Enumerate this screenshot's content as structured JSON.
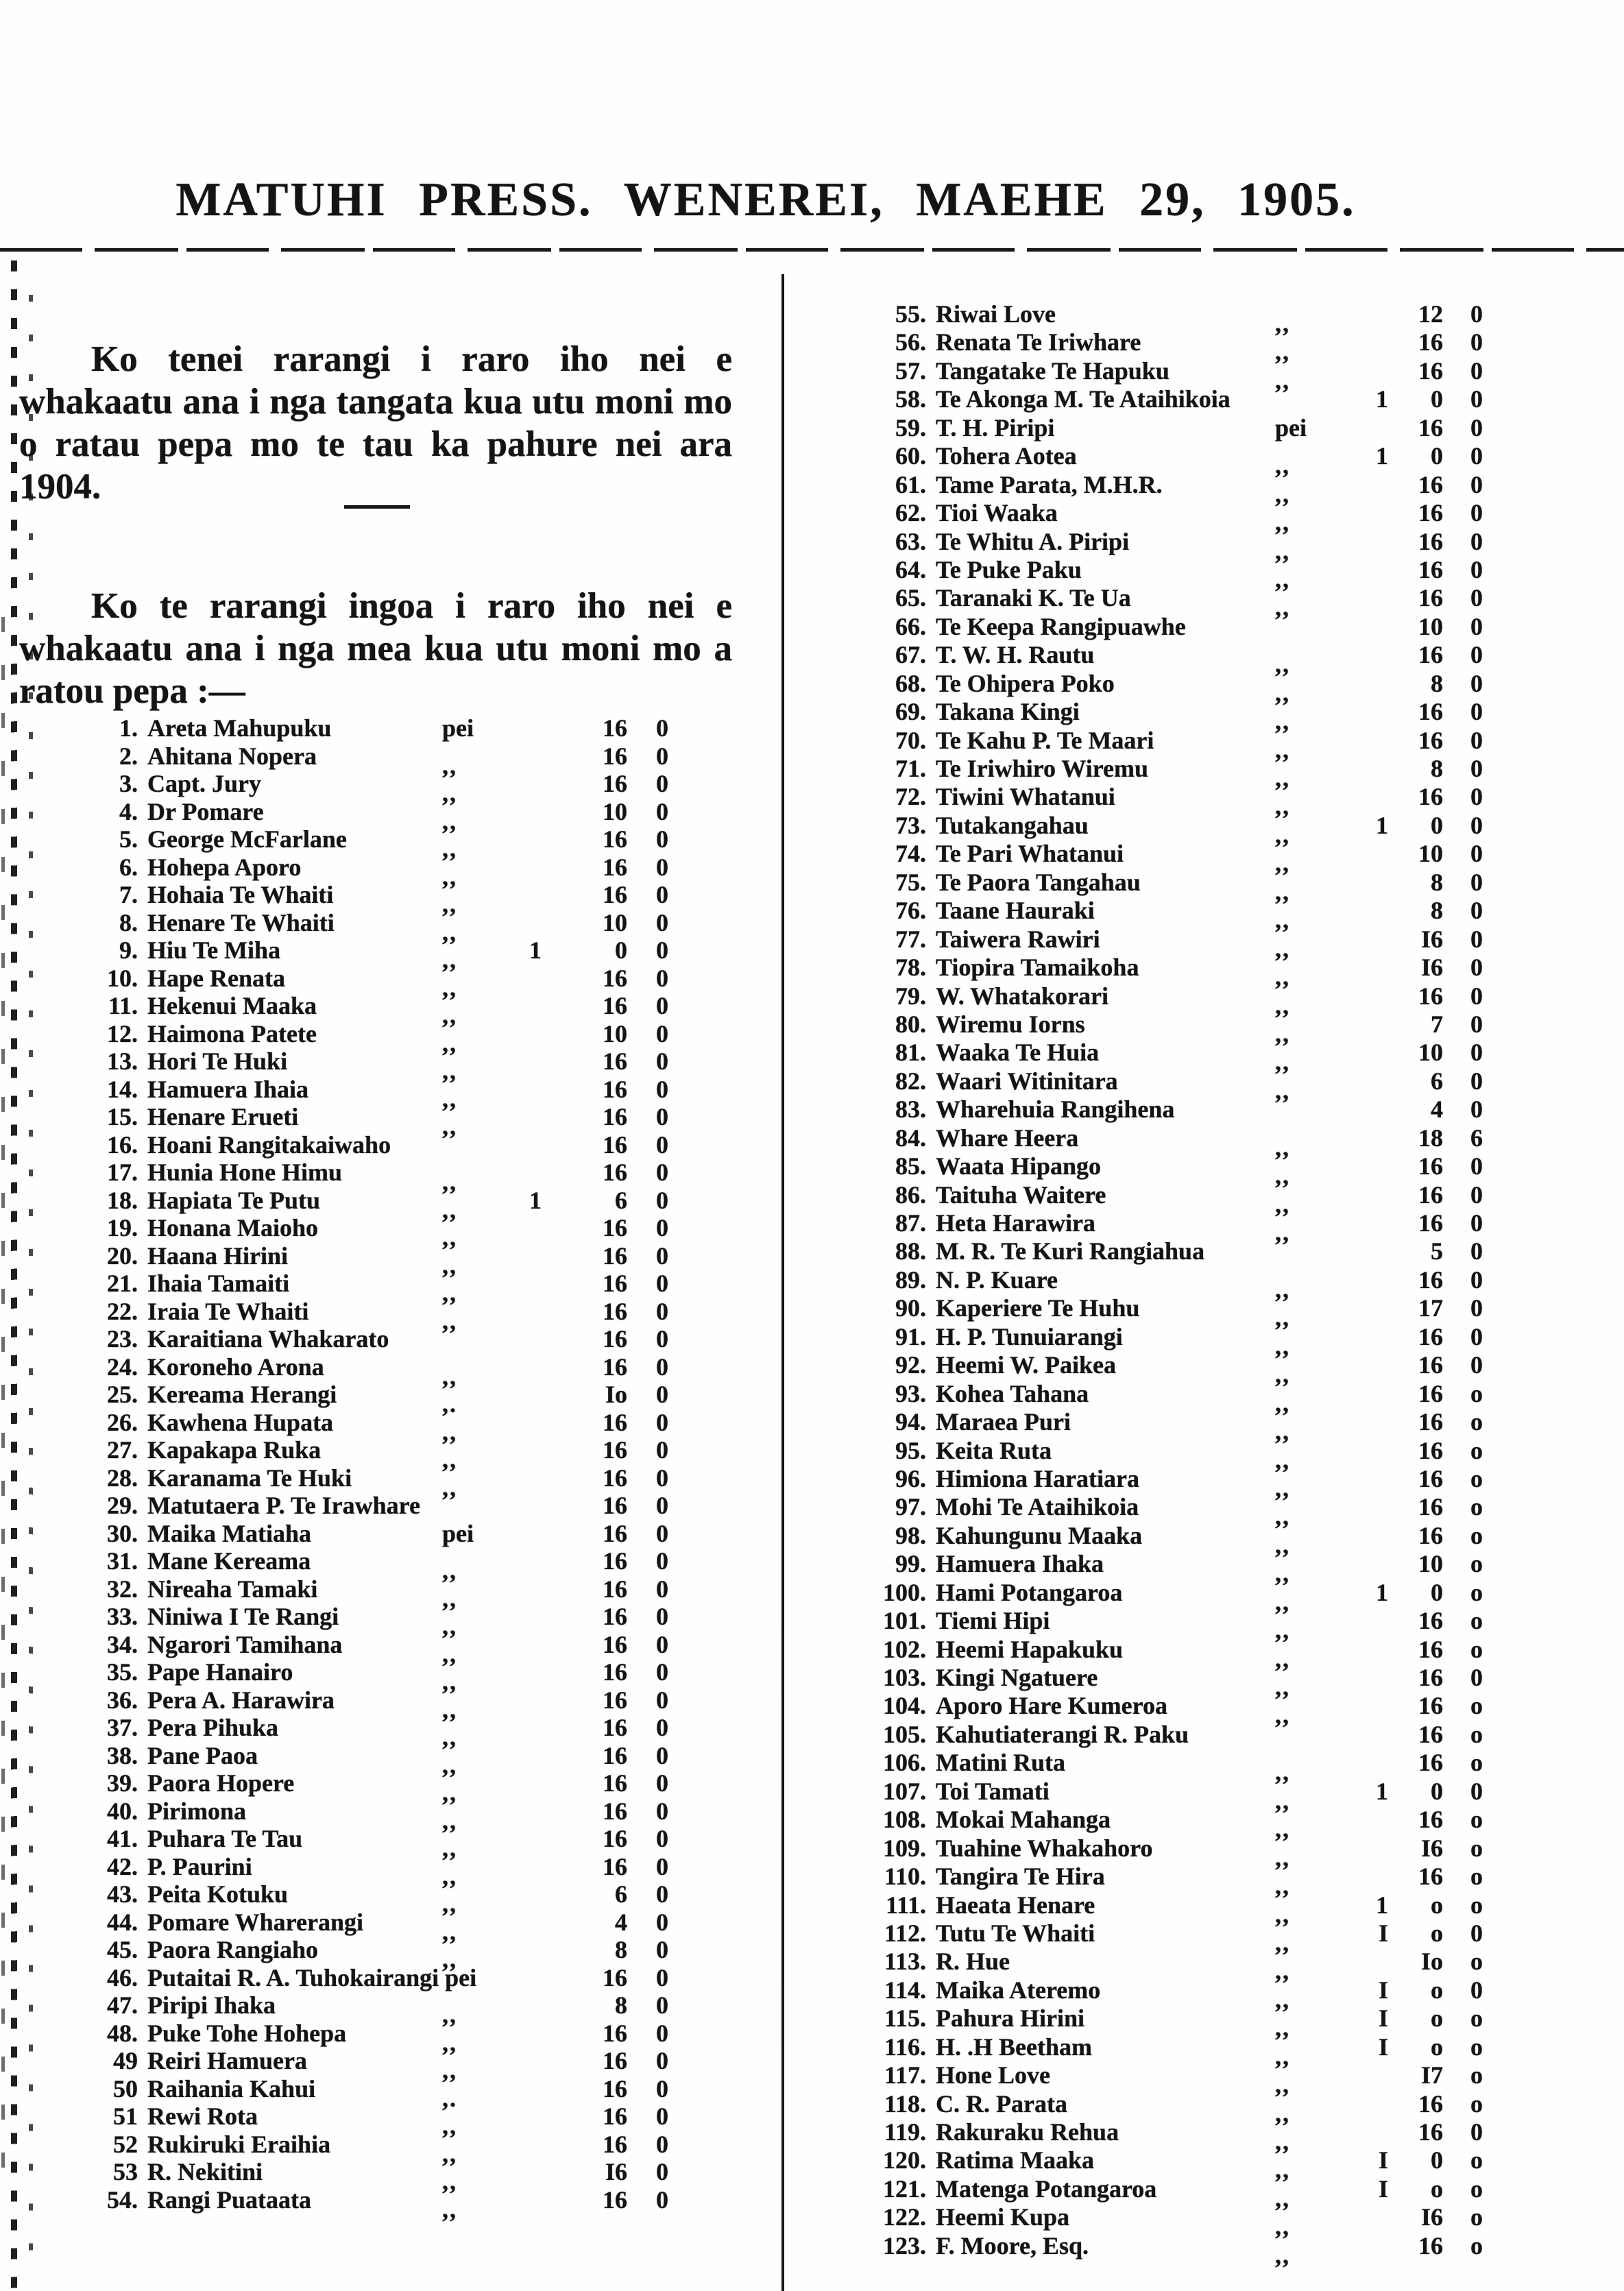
{
  "page": {
    "title": "MATUHI PRESS. WENEREI, MAEHE 29, 1905.",
    "intro_para_1": "Ko tenei rarangi i raro iho nei e whakaatu ana i nga tangata kua utu moni mo o ratau pepa mo te tau ka pahure nei ara 1904.",
    "intro_para_2": "Ko te rarangi ingoa i raro iho nei e whakaatu ana i nga mea kua utu moni mo a ratou pepa :—"
  },
  "ledger": {
    "left_rows": [
      {
        "n": "1.",
        "name": "Areta Mahupuku",
        "mark": "pei",
        "l": "",
        "s": "16",
        "d": "0"
      },
      {
        "n": "2.",
        "name": "Ahitana Nopera",
        "mark": ",,",
        "l": "",
        "s": "16",
        "d": "0"
      },
      {
        "n": "3.",
        "name": "Capt. Jury",
        "mark": ",,",
        "l": "",
        "s": "16",
        "d": "0"
      },
      {
        "n": "4.",
        "name": "Dr Pomare",
        "mark": ",,",
        "l": "",
        "s": "10",
        "d": "0"
      },
      {
        "n": "5.",
        "name": "George McFarlane",
        "mark": ",,",
        "l": "",
        "s": "16",
        "d": "0"
      },
      {
        "n": "6.",
        "name": "Hohepa Aporo",
        "mark": ",,",
        "l": "",
        "s": "16",
        "d": "0"
      },
      {
        "n": "7.",
        "name": "Hohaia Te Whaiti",
        "mark": ",,",
        "l": "",
        "s": "16",
        "d": "0"
      },
      {
        "n": "8.",
        "name": "Henare Te Whaiti",
        "mark": ",,",
        "l": "",
        "s": "10",
        "d": "0"
      },
      {
        "n": "9.",
        "name": "Hiu Te Miha",
        "mark": ",,",
        "l": "1",
        "s": "0",
        "d": "0"
      },
      {
        "n": "10.",
        "name": "Hape Renata",
        "mark": ",,",
        "l": "",
        "s": "16",
        "d": "0"
      },
      {
        "n": "11.",
        "name": "Hekenui Maaka",
        "mark": ",,",
        "l": "",
        "s": "16",
        "d": "0"
      },
      {
        "n": "12.",
        "name": "Haimona Patete",
        "mark": ",,",
        "l": "",
        "s": "10",
        "d": "0"
      },
      {
        "n": "13.",
        "name": "Hori Te Huki",
        "mark": ",,",
        "l": "",
        "s": "16",
        "d": "0"
      },
      {
        "n": "14.",
        "name": "Hamuera Ihaia",
        "mark": ",,",
        "l": "",
        "s": "16",
        "d": "0"
      },
      {
        "n": "15.",
        "name": "Henare Erueti",
        "mark": ",,",
        "l": "",
        "s": "16",
        "d": "0"
      },
      {
        "n": "16.",
        "name": "Hoani Rangitakaiwaho",
        "mark": "",
        "l": "",
        "s": "16",
        "d": "0"
      },
      {
        "n": "17.",
        "name": "Hunia Hone Himu",
        "mark": ",,",
        "l": "",
        "s": "16",
        "d": "0"
      },
      {
        "n": "18.",
        "name": "Hapiata Te Putu",
        "mark": ",,",
        "l": "1",
        "s": "6",
        "d": "0"
      },
      {
        "n": "19.",
        "name": "Honana Maioho",
        "mark": ",,",
        "l": "",
        "s": "16",
        "d": "0"
      },
      {
        "n": "20.",
        "name": "Haana Hirini",
        "mark": ",,",
        "l": "",
        "s": "16",
        "d": "0"
      },
      {
        "n": "21.",
        "name": "Ihaia Tamaiti",
        "mark": ",,",
        "l": "",
        "s": "16",
        "d": "0"
      },
      {
        "n": "22.",
        "name": "Iraia Te Whaiti",
        "mark": ",,",
        "l": "",
        "s": "16",
        "d": "0"
      },
      {
        "n": "23.",
        "name": "Karaitiana Whakarato",
        "mark": "",
        "l": "",
        "s": "16",
        "d": "0"
      },
      {
        "n": "24.",
        "name": "Koroneho Arona",
        "mark": ",,",
        "l": "",
        "s": "16",
        "d": "0"
      },
      {
        "n": "25.",
        "name": "Kereama Herangi",
        "mark": ",.",
        "l": "",
        "s": "Io",
        "d": "0"
      },
      {
        "n": "26.",
        "name": "Kawhena Hupata",
        "mark": ",,",
        "l": "",
        "s": "16",
        "d": "0"
      },
      {
        "n": "27.",
        "name": "Kapakapa Ruka",
        "mark": ",,",
        "l": "",
        "s": "16",
        "d": "0"
      },
      {
        "n": "28.",
        "name": "Karanama Te Huki",
        "mark": ",,",
        "l": "",
        "s": "16",
        "d": "0"
      },
      {
        "n": "29.",
        "name": "Matutaera P. Te Irawhare",
        "mark": "",
        "l": "",
        "s": "16",
        "d": "0"
      },
      {
        "n": "30.",
        "name": "Maika Matiaha",
        "mark": "pei",
        "l": "",
        "s": "16",
        "d": "0"
      },
      {
        "n": "31.",
        "name": "Mane Kereama",
        "mark": ",,",
        "l": "",
        "s": "16",
        "d": "0"
      },
      {
        "n": "32.",
        "name": "Nireaha Tamaki",
        "mark": ",,",
        "l": "",
        "s": "16",
        "d": "0"
      },
      {
        "n": "33.",
        "name": "Niniwa I Te Rangi",
        "mark": ",,",
        "l": "",
        "s": "16",
        "d": "0"
      },
      {
        "n": "34.",
        "name": "Ngarori Tamihana",
        "mark": ",,",
        "l": "",
        "s": "16",
        "d": "0"
      },
      {
        "n": "35.",
        "name": "Pape Hanairo",
        "mark": ",,",
        "l": "",
        "s": "16",
        "d": "0"
      },
      {
        "n": "36.",
        "name": "Pera A. Harawira",
        "mark": ",,",
        "l": "",
        "s": "16",
        "d": "0"
      },
      {
        "n": "37.",
        "name": "Pera Pihuka",
        "mark": ",,",
        "l": "",
        "s": "16",
        "d": "0"
      },
      {
        "n": "38.",
        "name": "Pane Paoa",
        "mark": ",,",
        "l": "",
        "s": "16",
        "d": "0"
      },
      {
        "n": "39.",
        "name": "Paora Hopere",
        "mark": ",,",
        "l": "",
        "s": "16",
        "d": "0"
      },
      {
        "n": "40.",
        "name": "Pirimona",
        "mark": ",,",
        "l": "",
        "s": "16",
        "d": "0"
      },
      {
        "n": "41.",
        "name": "Puhara Te Tau",
        "mark": ",,",
        "l": "",
        "s": "16",
        "d": "0"
      },
      {
        "n": "42.",
        "name": "P. Paurini",
        "mark": ",,",
        "l": "",
        "s": "16",
        "d": "0"
      },
      {
        "n": "43.",
        "name": "Peita Kotuku",
        "mark": ",,",
        "l": "",
        "s": "6",
        "d": "0"
      },
      {
        "n": "44.",
        "name": "Pomare Wharerangi",
        "mark": ",,",
        "l": "",
        "s": "4",
        "d": "0"
      },
      {
        "n": "45.",
        "name": "Paora Rangiaho",
        "mark": ",,",
        "l": "",
        "s": "8",
        "d": "0"
      },
      {
        "n": "46.",
        "name": "Putaitai R. A. Tuhokairangi pei",
        "mark": "",
        "l": "",
        "s": "16",
        "d": "0"
      },
      {
        "n": "47.",
        "name": "Piripi Ihaka",
        "mark": ",,",
        "l": "",
        "s": "8",
        "d": "0"
      },
      {
        "n": "48.",
        "name": "Puke Tohe Hohepa",
        "mark": ",,",
        "l": "",
        "s": "16",
        "d": "0"
      },
      {
        "n": "49",
        "name": "Reiri Hamuera",
        "mark": ",,",
        "l": "",
        "s": "16",
        "d": "0"
      },
      {
        "n": "50",
        "name": "Raihania Kahui",
        "mark": ",.",
        "l": "",
        "s": "16",
        "d": "0"
      },
      {
        "n": "51",
        "name": "Rewi Rota",
        "mark": ",,",
        "l": "",
        "s": "16",
        "d": "0"
      },
      {
        "n": "52",
        "name": "Rukiruki Eraihia",
        "mark": ",,",
        "l": "",
        "s": "16",
        "d": "0"
      },
      {
        "n": "53",
        "name": "R. Nekitini",
        "mark": ",,",
        "l": "",
        "s": "I6",
        "d": "0"
      },
      {
        "n": "54.",
        "name": "Rangi Puataata",
        "mark": ",,",
        "l": "",
        "s": "16",
        "d": "0"
      }
    ],
    "right_rows": [
      {
        "n": "55.",
        "name": "Riwai Love",
        "mark": ",,",
        "l": "",
        "s": "12",
        "d": "0"
      },
      {
        "n": "56.",
        "name": "Renata Te Iriwhare",
        "mark": ",,",
        "l": "",
        "s": "16",
        "d": "0"
      },
      {
        "n": "57.",
        "name": "Tangatake Te Hapuku",
        "mark": ",,",
        "l": "",
        "s": "16",
        "d": "0"
      },
      {
        "n": "58.",
        "name": "Te Akonga M. Te Ataihikoia",
        "mark": "",
        "l": "1",
        "s": "0",
        "d": "0"
      },
      {
        "n": "59.",
        "name": "T. H. Piripi",
        "mark": "pei",
        "l": "",
        "s": "16",
        "d": "0"
      },
      {
        "n": "60.",
        "name": "Tohera Aotea",
        "mark": ",,",
        "l": "1",
        "s": "0",
        "d": "0"
      },
      {
        "n": "61.",
        "name": "Tame Parata, M.H.R.",
        "mark": ",,",
        "l": "",
        "s": "16",
        "d": "0"
      },
      {
        "n": "62.",
        "name": "Tioi Waaka",
        "mark": ",,",
        "l": "",
        "s": "16",
        "d": "0"
      },
      {
        "n": "63.",
        "name": "Te Whitu A. Piripi",
        "mark": ",,",
        "l": "",
        "s": "16",
        "d": "0"
      },
      {
        "n": "64.",
        "name": "Te Puke Paku",
        "mark": ",,",
        "l": "",
        "s": "16",
        "d": "0"
      },
      {
        "n": "65.",
        "name": "Taranaki K. Te Ua",
        "mark": ",,",
        "l": "",
        "s": "16",
        "d": "0"
      },
      {
        "n": "66.",
        "name": "Te Keepa Rangipuawhe",
        "mark": "",
        "l": "",
        "s": "10",
        "d": "0"
      },
      {
        "n": "67.",
        "name": "T. W. H. Rautu",
        "mark": ",,",
        "l": "",
        "s": "16",
        "d": "0"
      },
      {
        "n": "68.",
        "name": "Te Ohipera Poko",
        "mark": ",,",
        "l": "",
        "s": "8",
        "d": "0"
      },
      {
        "n": "69.",
        "name": "Takana Kingi",
        "mark": ",,",
        "l": "",
        "s": "16",
        "d": "0"
      },
      {
        "n": "70.",
        "name": "Te Kahu P. Te Maari",
        "mark": ",,",
        "l": "",
        "s": "16",
        "d": "0"
      },
      {
        "n": "71.",
        "name": "Te Iriwhiro Wiremu",
        "mark": ",,",
        "l": "",
        "s": "8",
        "d": "0"
      },
      {
        "n": "72.",
        "name": "Tiwini Whatanui",
        "mark": ",,",
        "l": "",
        "s": "16",
        "d": "0"
      },
      {
        "n": "73.",
        "name": "Tutakangahau",
        "mark": ",,",
        "l": "1",
        "s": "0",
        "d": "0"
      },
      {
        "n": "74.",
        "name": "Te Pari Whatanui",
        "mark": ",,",
        "l": "",
        "s": "10",
        "d": "0"
      },
      {
        "n": "75.",
        "name": "Te Paora Tangahau",
        "mark": ",,",
        "l": "",
        "s": "8",
        "d": "0"
      },
      {
        "n": "76.",
        "name": "Taane Hauraki",
        "mark": ",,",
        "l": "",
        "s": "8",
        "d": "0"
      },
      {
        "n": "77.",
        "name": "Taiwera Rawiri",
        "mark": ",,",
        "l": "",
        "s": "I6",
        "d": "0"
      },
      {
        "n": "78.",
        "name": "Tiopira Tamaikoha",
        "mark": ",,",
        "l": "",
        "s": "I6",
        "d": "0"
      },
      {
        "n": "79.",
        "name": "W. Whatakorari",
        "mark": ",,",
        "l": "",
        "s": "16",
        "d": "0"
      },
      {
        "n": "80.",
        "name": "Wiremu Iorns",
        "mark": ",,",
        "l": "",
        "s": "7",
        "d": "0"
      },
      {
        "n": "81.",
        "name": "Waaka Te Huia",
        "mark": ",,",
        "l": "",
        "s": "10",
        "d": "0"
      },
      {
        "n": "82.",
        "name": "Waari Witinitara",
        "mark": ",,",
        "l": "",
        "s": "6",
        "d": "0"
      },
      {
        "n": "83.",
        "name": "Wharehuia Rangihena",
        "mark": "",
        "l": "",
        "s": "4",
        "d": "0"
      },
      {
        "n": "84.",
        "name": "Whare Heera",
        "mark": ",,",
        "l": "",
        "s": "18",
        "d": "6"
      },
      {
        "n": "85.",
        "name": "Waata Hipango",
        "mark": ",,",
        "l": "",
        "s": "16",
        "d": "0"
      },
      {
        "n": "86.",
        "name": "Taituha Waitere",
        "mark": ",,",
        "l": "",
        "s": "16",
        "d": "0"
      },
      {
        "n": "87.",
        "name": "Heta Harawira",
        "mark": ",,",
        "l": "",
        "s": "16",
        "d": "0"
      },
      {
        "n": "88.",
        "name": "M. R. Te Kuri Rangiahua",
        "mark": "",
        "l": "",
        "s": "5",
        "d": "0"
      },
      {
        "n": "89.",
        "name": "N. P. Kuare",
        "mark": ",,",
        "l": "",
        "s": "16",
        "d": "0"
      },
      {
        "n": "90.",
        "name": "Kaperiere Te Huhu",
        "mark": ",,",
        "l": "",
        "s": "17",
        "d": "0"
      },
      {
        "n": "91.",
        "name": "H. P. Tunuiarangi",
        "mark": ",,",
        "l": "",
        "s": "16",
        "d": "0"
      },
      {
        "n": "92.",
        "name": "Heemi W. Paikea",
        "mark": ",,",
        "l": "",
        "s": "16",
        "d": "0"
      },
      {
        "n": "93.",
        "name": "Kohea Tahana",
        "mark": ",,",
        "l": "",
        "s": "16",
        "d": "o"
      },
      {
        "n": "94.",
        "name": "Maraea Puri",
        "mark": ",,",
        "l": "",
        "s": "16",
        "d": "o"
      },
      {
        "n": "95.",
        "name": "Keita Ruta",
        "mark": ",,",
        "l": "",
        "s": "16",
        "d": "o"
      },
      {
        "n": "96.",
        "name": "Himiona Haratiara",
        "mark": ",,",
        "l": "",
        "s": "16",
        "d": "o"
      },
      {
        "n": "97.",
        "name": "Mohi Te Ataihikoia",
        "mark": ",,",
        "l": "",
        "s": "16",
        "d": "o"
      },
      {
        "n": "98.",
        "name": "Kahungunu Maaka",
        "mark": ",,",
        "l": "",
        "s": "16",
        "d": "o"
      },
      {
        "n": "99.",
        "name": "Hamuera Ihaka",
        "mark": ",,",
        "l": "",
        "s": "10",
        "d": "o"
      },
      {
        "n": "100.",
        "name": "Hami Potangaroa",
        "mark": ",,",
        "l": "1",
        "s": "0",
        "d": "o"
      },
      {
        "n": "101.",
        "name": "Tiemi Hipi",
        "mark": ",,",
        "l": "",
        "s": "16",
        "d": "o"
      },
      {
        "n": "102.",
        "name": "Heemi Hapakuku",
        "mark": ",,",
        "l": "",
        "s": "16",
        "d": "o"
      },
      {
        "n": "103.",
        "name": "Kingi Ngatuere",
        "mark": ",,",
        "l": "",
        "s": "16",
        "d": "0"
      },
      {
        "n": "104.",
        "name": "Aporo Hare Kumeroa",
        "mark": ",,",
        "l": "",
        "s": "16",
        "d": "o"
      },
      {
        "n": "105.",
        "name": "Kahutiaterangi R. Paku",
        "mark": "",
        "l": "",
        "s": "16",
        "d": "o"
      },
      {
        "n": "106.",
        "name": "Matini Ruta",
        "mark": ",,",
        "l": "",
        "s": "16",
        "d": "o"
      },
      {
        "n": "107.",
        "name": "Toi Tamati",
        "mark": ",,",
        "l": "1",
        "s": "0",
        "d": "0"
      },
      {
        "n": "108.",
        "name": "Mokai Mahanga",
        "mark": ",,",
        "l": "",
        "s": "16",
        "d": "o"
      },
      {
        "n": "109.",
        "name": "Tuahine Whakahoro",
        "mark": ",,",
        "l": "",
        "s": "I6",
        "d": "o"
      },
      {
        "n": "110.",
        "name": "Tangira Te Hira",
        "mark": ",,",
        "l": "",
        "s": "16",
        "d": "o"
      },
      {
        "n": "111.",
        "name": "Haeata Henare",
        "mark": ",,",
        "l": "1",
        "s": "o",
        "d": "o"
      },
      {
        "n": "112.",
        "name": "Tutu Te Whaiti",
        "mark": ",,",
        "l": "I",
        "s": "o",
        "d": "0"
      },
      {
        "n": "113.",
        "name": "R. Hue",
        "mark": ",,",
        "l": "",
        "s": "Io",
        "d": "o"
      },
      {
        "n": "114.",
        "name": "Maika Ateremo",
        "mark": ",,",
        "l": "I",
        "s": "o",
        "d": "0"
      },
      {
        "n": "115.",
        "name": "Pahura Hirini",
        "mark": ",,",
        "l": "I",
        "s": "o",
        "d": "o"
      },
      {
        "n": "116.",
        "name": "H. .H Beetham",
        "mark": ",,",
        "l": "I",
        "s": "o",
        "d": "o"
      },
      {
        "n": "117.",
        "name": "Hone Love",
        "mark": ",,",
        "l": "",
        "s": "I7",
        "d": "o"
      },
      {
        "n": "118.",
        "name": "C. R. Parata",
        "mark": ",,",
        "l": "",
        "s": "16",
        "d": "o"
      },
      {
        "n": "119.",
        "name": "Rakuraku Rehua",
        "mark": ",,",
        "l": "",
        "s": "16",
        "d": "0"
      },
      {
        "n": "120.",
        "name": "Ratima Maaka",
        "mark": ",,",
        "l": "I",
        "s": "0",
        "d": "o"
      },
      {
        "n": "121.",
        "name": "Matenga Potangaroa",
        "mark": ",,",
        "l": "I",
        "s": "o",
        "d": "o"
      },
      {
        "n": "122.",
        "name": "Heemi Kupa",
        "mark": ",,",
        "l": "",
        "s": "I6",
        "d": "o"
      },
      {
        "n": "123.",
        "name": "F. Moore, Esq.",
        "mark": ",,",
        "l": "",
        "s": "16",
        "d": "o"
      }
    ]
  }
}
